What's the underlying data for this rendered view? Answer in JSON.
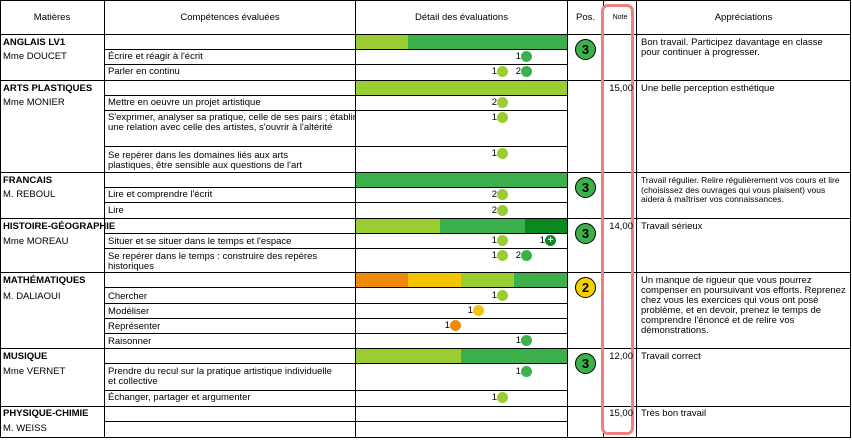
{
  "header": {
    "matieres": "Matières",
    "competences": "Compétences évaluées",
    "detail": "Détail des évaluations",
    "pos": "Pos.",
    "note": "Note",
    "appreciations": "Appréciations"
  },
  "subjects": [
    {
      "name": "ANGLAIS LV1",
      "teacher": "Mme DOUCET",
      "position": "3",
      "grade": "",
      "appreciation": "Bon travail. Participez davantage en classe pour continuer à progresser.",
      "competences": [
        {
          "label": "Écrire et réagir à l'écrit",
          "evals": [
            {
              "count": "1",
              "level": "dark-green"
            }
          ]
        },
        {
          "label": "Parler en continu",
          "evals": [
            {
              "count": "1",
              "level": "light-green"
            },
            {
              "count": "2",
              "level": "dark-green"
            }
          ]
        }
      ]
    },
    {
      "name": "ARTS PLASTIQUES",
      "teacher": "Mme MONIER",
      "position": "",
      "grade": "15,00",
      "appreciation": "Une belle perception esthétique",
      "competences": [
        {
          "label": "Mettre en oeuvre un projet artistique",
          "evals": [
            {
              "count": "2",
              "level": "light-green"
            }
          ]
        },
        {
          "label": "S'exprimer, analyser sa pratique, celle de ses pairs ; établir une relation avec celle des artistes, s'ouvrir à l'altérité",
          "evals": [
            {
              "count": "1",
              "level": "light-green"
            }
          ]
        },
        {
          "label": "Se repérer dans les domaines liés aux arts plastiques, être sensible aux questions de l'art",
          "evals": [
            {
              "count": "1",
              "level": "light-green"
            }
          ]
        }
      ]
    },
    {
      "name": "FRANCAIS",
      "teacher": "M. REBOUL",
      "position": "3",
      "grade": "",
      "appreciation": "Travail régulier. Relire régulièrement vos cours et lire (choisissez des ouvrages qui vous plaisent) vous aidera à maîtriser vos connaissances.",
      "competences": [
        {
          "label": "Lire et comprendre l'écrit",
          "evals": [
            {
              "count": "2",
              "level": "light-green"
            }
          ]
        },
        {
          "label": "Lire",
          "evals": [
            {
              "count": "2",
              "level": "light-green"
            }
          ]
        }
      ]
    },
    {
      "name": "HISTOIRE-GÉOGRAPHIE",
      "teacher": "Mme MOREAU",
      "position": "3",
      "grade": "14,00",
      "appreciation": "Travail sérieux",
      "competences": [
        {
          "label": "Situer et se situer dans le temps et l'espace",
          "evals": [
            {
              "count": "1",
              "level": "light-green"
            },
            {
              "count": "1",
              "level": "dark-green-plus"
            }
          ]
        },
        {
          "label": "Se repérer dans le temps : construire des repères historiques",
          "evals": [
            {
              "count": "1",
              "level": "light-green"
            },
            {
              "count": "2",
              "level": "dark-green"
            }
          ]
        }
      ]
    },
    {
      "name": "MATHÉMATIQUES",
      "teacher": "M. DALIAOUI",
      "position": "2",
      "grade": "",
      "appreciation": "Un manque de rigueur que vous pourrez compenser en poursuivant vos efforts. Reprenez chez vous les exercices qui vous ont posé problème, et en devoir, prenez le temps de comprendre l'énoncé et de relire vos démonstrations.",
      "competences": [
        {
          "label": "Chercher",
          "evals": [
            {
              "count": "1",
              "level": "light-green"
            }
          ]
        },
        {
          "label": "Modéliser",
          "evals": [
            {
              "count": "1",
              "level": "yellow"
            }
          ]
        },
        {
          "label": "Représenter",
          "evals": [
            {
              "count": "1",
              "level": "orange"
            }
          ]
        },
        {
          "label": "Raisonner",
          "evals": [
            {
              "count": "1",
              "level": "dark-green"
            }
          ]
        }
      ]
    },
    {
      "name": "MUSIQUE",
      "teacher": "Mme VERNET",
      "position": "3",
      "grade": "12,00",
      "appreciation": "Travail correct",
      "competences": [
        {
          "label": "Prendre du recul sur la pratique artistique individuelle et collective",
          "evals": [
            {
              "count": "1",
              "level": "dark-green"
            }
          ]
        },
        {
          "label": "Échanger, partager et argumenter",
          "evals": [
            {
              "count": "1",
              "level": "light-green"
            }
          ]
        }
      ]
    },
    {
      "name": "PHYSIQUE-CHIMIE",
      "teacher": "M. WEISS",
      "position": "",
      "grade": "15,00",
      "appreciation": "Très bon travail",
      "competences": []
    }
  ],
  "colors": {
    "dark-green": "#3cb04a",
    "light-green": "#9acd32",
    "deep-green": "#0a8a1e",
    "yellow": "#f5c400",
    "orange": "#f08a0a",
    "highlight": "#f08080",
    "position-green": "#3cb04a",
    "position-yellow": "#f5d000"
  }
}
